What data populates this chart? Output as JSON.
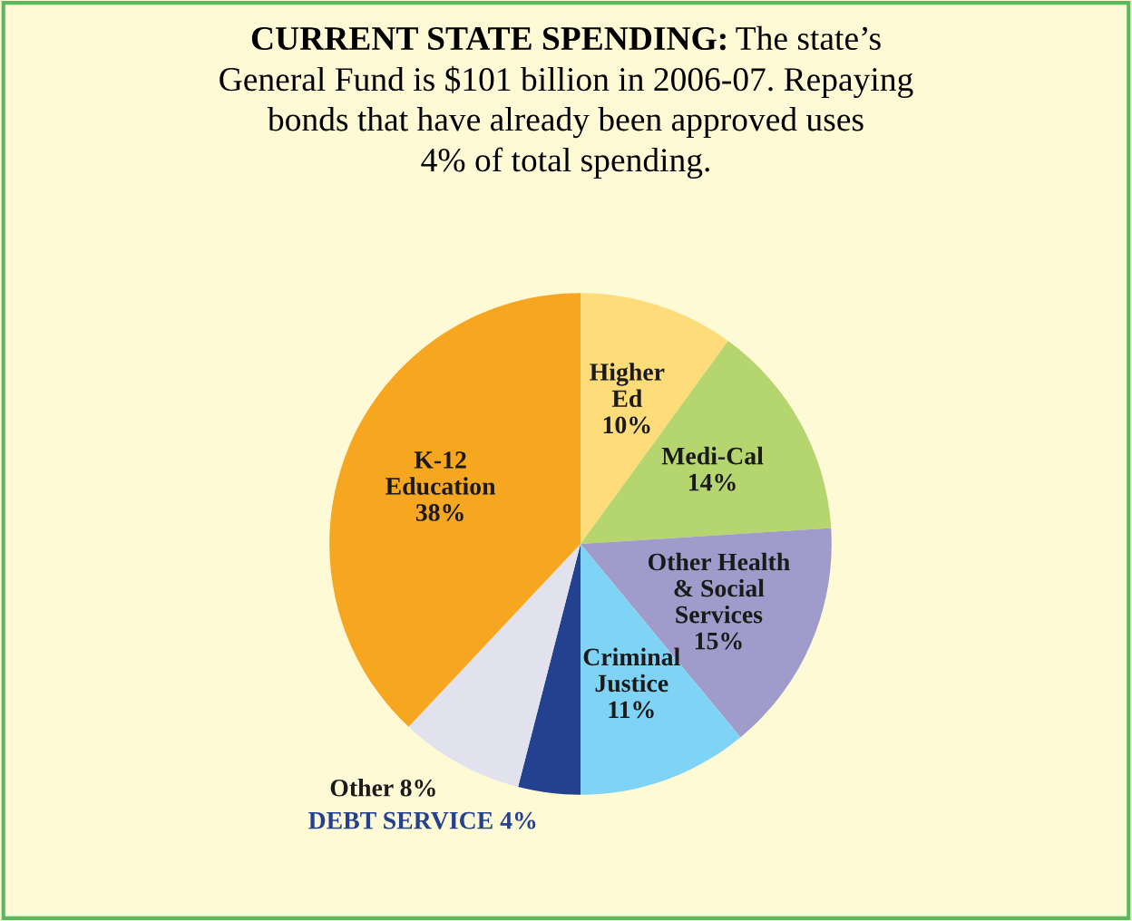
{
  "chart_data": {
    "type": "pie",
    "title": "CURRENT STATE SPENDING:",
    "subtitle": "The state’s\nGeneral Fund is $101 billion in 2006-07. Repaying\nbonds that have already been approved uses\n4% of total spending.",
    "categories": [
      "Higher\nEd",
      "Medi-Cal",
      "Other Health\n& Social\nServices",
      "Criminal\nJustice",
      "DEBT SERVICE",
      "Other",
      "K-12\nEducation"
    ],
    "values": [
      10,
      14,
      15,
      11,
      4,
      8,
      38
    ],
    "value_labels": [
      "10%",
      "14%",
      "15%",
      "11%",
      "4%",
      "8%",
      "38%"
    ],
    "colors": [
      "#fedc7a",
      "#b5d56e",
      "#9f9ccb",
      "#7fd3f5",
      "#23418f",
      "#e2e2ee",
      "#f6a61f"
    ]
  }
}
